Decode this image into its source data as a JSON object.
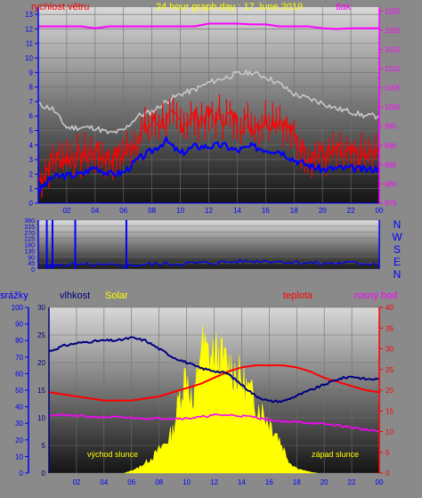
{
  "chart_data": [
    {
      "type": "line",
      "title": "24 hour graph day : 17 June 2019",
      "left_axis_label": "rychlost větru",
      "right_axis_label": "tlak",
      "x_ticks": [
        "02",
        "04",
        "06",
        "08",
        "10",
        "12",
        "14",
        "16",
        "18",
        "20",
        "22",
        "00"
      ],
      "left_ticks": [
        "0",
        "1",
        "2",
        "3",
        "4",
        "5",
        "6",
        "7",
        "8",
        "9",
        "10",
        "11",
        "12",
        "13"
      ],
      "right_ticks": [
        "975",
        "980",
        "985",
        "990",
        "995",
        "1000",
        "1005",
        "1010",
        "1015",
        "1020",
        "1025"
      ],
      "ylim_left": [
        0,
        13.5
      ],
      "ylim_right": [
        975,
        1026
      ],
      "grid": true,
      "colors": {
        "pressure": "#ff00ff",
        "gust": "#ff0000",
        "wind": "#0000ff",
        "wind_max": "#c8c8c8"
      },
      "x": [
        0,
        1,
        2,
        3,
        4,
        5,
        6,
        7,
        8,
        9,
        10,
        11,
        12,
        13,
        14,
        15,
        16,
        17,
        18,
        19,
        20,
        21,
        22,
        23,
        24
      ],
      "pressure": [
        1021,
        1021,
        1021,
        1021,
        1020.5,
        1021,
        1021,
        1021,
        1021,
        1021,
        1021,
        1021,
        1021.7,
        1021.7,
        1021.7,
        1021.5,
        1021.5,
        1021,
        1021,
        1021,
        1020.5,
        1020.3,
        1020.5,
        1020.5,
        1020.5
      ],
      "wind_max": [
        6.8,
        6.5,
        5.2,
        5.2,
        5.2,
        4.8,
        5.0,
        6.0,
        6.3,
        7.0,
        7.5,
        7.8,
        8.3,
        8.6,
        8.9,
        9.0,
        8.7,
        8.2,
        7.5,
        7.2,
        6.9,
        6.5,
        6.3,
        6.0,
        6.0
      ],
      "gust": [
        1.5,
        3.0,
        3.2,
        3.2,
        3.5,
        3.1,
        3.4,
        4.5,
        5.5,
        5.7,
        5.6,
        5.9,
        5.9,
        6.0,
        5.7,
        5.4,
        5.7,
        5.9,
        4.5,
        3.4,
        3.3,
        3.4,
        3.2,
        3.2,
        3.3
      ],
      "wind": [
        0.8,
        1.8,
        1.9,
        2.0,
        2.5,
        2.0,
        2.1,
        3.0,
        3.6,
        4.3,
        3.4,
        3.9,
        3.9,
        4.0,
        3.6,
        3.9,
        3.7,
        3.6,
        3.0,
        2.6,
        2.3,
        2.4,
        2.4,
        2.3,
        2.4
      ]
    },
    {
      "type": "scatter",
      "title": "",
      "left_ticks": [
        "0",
        "45",
        "90",
        "135",
        "180",
        "225",
        "270",
        "315",
        "360"
      ],
      "right_labels": [
        "N",
        "W",
        "S",
        "E",
        "N"
      ],
      "x_ticks": [],
      "ylim": [
        0,
        360
      ],
      "colors": {
        "direction": "#0000ff"
      },
      "x": [
        0.5,
        1.0,
        2.0,
        4.0,
        6.0,
        8.0,
        10.0,
        12.0,
        14.0,
        16.0,
        18.0,
        20.0,
        22.0,
        24.0
      ],
      "direction": [
        20,
        25,
        30,
        28,
        25,
        35,
        40,
        45,
        55,
        60,
        50,
        40,
        45,
        40
      ],
      "spikes_x": [
        0.6,
        1.0,
        2.6,
        6.2
      ],
      "spikes_value": [
        360,
        360,
        360,
        360
      ]
    },
    {
      "type": "line",
      "title": "",
      "left_axis_label_1": "srážky",
      "left_axis_label_2": "vlhkost",
      "left_axis_label_3": "Solar",
      "right_axis_label_1": "teplota",
      "right_axis_label_2": "rosný bod",
      "sunrise_label": "východ slunce",
      "sunset_label": "západ slunce",
      "x_ticks": [
        "02",
        "04",
        "06",
        "08",
        "10",
        "12",
        "14",
        "16",
        "18",
        "20",
        "22",
        "00"
      ],
      "rain_ticks": [
        "0",
        "10",
        "20",
        "30",
        "40",
        "50",
        "60",
        "70",
        "80",
        "90",
        "100"
      ],
      "hum_ticks": [
        "0",
        "5",
        "10",
        "15",
        "20",
        "25",
        "30"
      ],
      "temp_ticks": [
        "0",
        "5",
        "10",
        "15",
        "20",
        "25",
        "30",
        "35",
        "40"
      ],
      "ylim_rain": [
        0,
        100
      ],
      "ylim_humidity": [
        0,
        30
      ],
      "ylim_temp": [
        0,
        40
      ],
      "colors": {
        "humidity": "#000080",
        "temperature": "#ff0000",
        "dewpoint": "#ff00ff",
        "solar": "#ffff00"
      },
      "x": [
        0,
        1,
        2,
        3,
        4,
        5,
        6,
        7,
        8,
        9,
        10,
        11,
        12,
        13,
        14,
        15,
        16,
        17,
        18,
        19,
        20,
        21,
        22,
        23,
        24
      ],
      "humidity": [
        22,
        23,
        23.5,
        23.8,
        24,
        24,
        24.5,
        24,
        22.5,
        21,
        20,
        19,
        18.5,
        18,
        16,
        14,
        13,
        13,
        14,
        15,
        16,
        17,
        17.5,
        17,
        17
      ],
      "temperature": [
        19.5,
        19,
        18.5,
        18,
        17.5,
        17.5,
        17.5,
        18,
        18.5,
        19.5,
        20.5,
        21.5,
        23,
        24.5,
        25.5,
        26,
        26,
        26,
        25.5,
        24.5,
        23,
        22,
        21,
        20,
        19.5
      ],
      "dewpoint": [
        14,
        14,
        13.8,
        13.6,
        13.5,
        13.5,
        13.3,
        13.2,
        13.2,
        13.2,
        13.2,
        13.5,
        14,
        14,
        13.8,
        13.5,
        12.8,
        12.5,
        12.3,
        12.1,
        11.8,
        11.5,
        11,
        10.5,
        10
      ],
      "solar_x": [
        5.5,
        6,
        6.5,
        7,
        7.5,
        8,
        8.5,
        9,
        9.5,
        10,
        10.5,
        11,
        11.5,
        12,
        12.5,
        13,
        13.5,
        14,
        14.5,
        15,
        15.5,
        16,
        16.5,
        17,
        17.5,
        18,
        18.5,
        19,
        19.5
      ],
      "solar": [
        0,
        0.5,
        1,
        2,
        3,
        4.5,
        6,
        8,
        15,
        20,
        12,
        25,
        23,
        23,
        22,
        21,
        20,
        18,
        16,
        14,
        12,
        10,
        8,
        5,
        2,
        1,
        0.5,
        0.2,
        0
      ]
    }
  ]
}
